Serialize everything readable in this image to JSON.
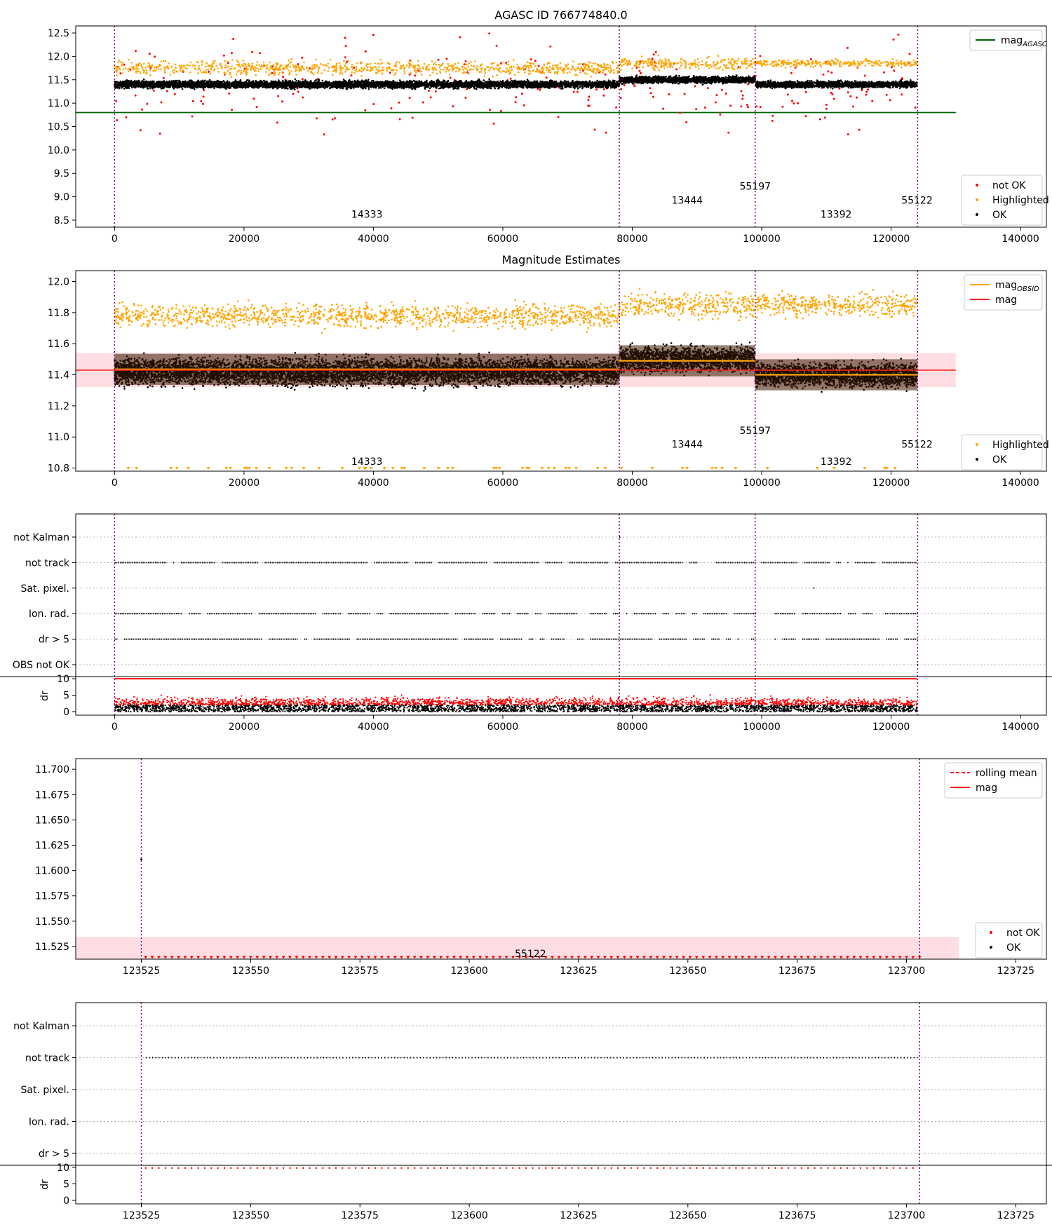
{
  "figure": {
    "titles": [
      "AGASC ID 766774840.0",
      "Magnitude Estimates"
    ],
    "colors": {
      "ok": "#000000",
      "not_ok": "#ff0000",
      "highlighted": "#ffa500",
      "agasc": "#006400",
      "mag_line": "#ff2020",
      "obsid_line": "#ffa500",
      "band": "#ffb6c1",
      "obs_divider": "#800080",
      "grid": "#b0b0b0"
    }
  },
  "chart_data": [
    {
      "type": "scatter",
      "title": "AGASC ID 766774840.0",
      "xlabel": "",
      "ylabel": "",
      "xlim": [
        -6000,
        144000
      ],
      "ylim": [
        8.35,
        12.65
      ],
      "xticks": [
        0,
        20000,
        40000,
        60000,
        80000,
        100000,
        120000,
        140000
      ],
      "yticks": [
        8.5,
        9.0,
        9.5,
        10.0,
        10.5,
        11.0,
        11.5,
        12.0,
        12.5
      ],
      "ytick_labels": [
        "8.5",
        "9.0",
        "9.5",
        "10.0",
        "10.5",
        "11.0",
        "11.5",
        "12.0",
        "12.5"
      ],
      "obs_boundaries": [
        0,
        78000,
        99000,
        124100
      ],
      "obs_labels": [
        {
          "text": "14333",
          "x": 39000,
          "y": 8.55
        },
        {
          "text": "13444",
          "x": 88500,
          "y": 8.85
        },
        {
          "text": "55197",
          "x": 99000,
          "y": 9.15
        },
        {
          "text": "13392",
          "x": 111500,
          "y": 8.55
        },
        {
          "text": "55122",
          "x": 124000,
          "y": 8.85
        }
      ],
      "lines": [
        {
          "name": "mag_AGASC",
          "y": 10.8,
          "x_range": [
            -6000,
            130000
          ]
        }
      ],
      "series": [
        {
          "name": "not OK",
          "segments": [
            {
              "x0": 0,
              "x1": 124000,
              "mean": 11.4,
              "spread": 1.4
            }
          ]
        },
        {
          "name": "Highlighted",
          "segments": [
            {
              "x0": 0,
              "x1": 78000,
              "mean": 11.75,
              "spread": 0.25
            },
            {
              "x0": 78000,
              "x1": 99000,
              "mean": 11.85,
              "spread": 0.2
            },
            {
              "x0": 99000,
              "x1": 124000,
              "mean": 11.85,
              "spread": 0.12
            }
          ]
        },
        {
          "name": "OK",
          "segments": [
            {
              "x0": 0,
              "x1": 78000,
              "mean": 11.4,
              "spread": 0.13
            },
            {
              "x0": 78000,
              "x1": 99000,
              "mean": 11.5,
              "spread": 0.12
            },
            {
              "x0": 99000,
              "x1": 124000,
              "mean": 11.4,
              "spread": 0.11
            }
          ]
        }
      ],
      "legend_upper": {
        "position": "top-right",
        "entries": [
          {
            "label": "mag",
            "sub": "AGASC",
            "kind": "line",
            "color": "#006400"
          }
        ]
      },
      "legend_lower": {
        "position": "bottom-right",
        "entries": [
          {
            "label": "not OK",
            "kind": "dot",
            "color": "#ff0000"
          },
          {
            "label": "Highlighted",
            "kind": "dot",
            "color": "#ffa500"
          },
          {
            "label": "OK",
            "kind": "dot",
            "color": "#000000"
          }
        ]
      }
    },
    {
      "type": "scatter",
      "title": "Magnitude Estimates",
      "xlabel": "",
      "ylabel": "",
      "xlim": [
        -6000,
        144000
      ],
      "ylim": [
        10.78,
        12.07
      ],
      "xticks": [
        0,
        20000,
        40000,
        60000,
        80000,
        100000,
        120000,
        140000
      ],
      "yticks": [
        10.8,
        11.0,
        11.2,
        11.4,
        11.6,
        11.8,
        12.0
      ],
      "ytick_labels": [
        "10.8",
        "11.0",
        "11.2",
        "11.4",
        "11.6",
        "11.8",
        "12.0"
      ],
      "obs_boundaries": [
        0,
        78000,
        99000,
        124100
      ],
      "obs_labels": [
        {
          "text": "14333",
          "x": 39000,
          "y": 10.82
        },
        {
          "text": "13444",
          "x": 88500,
          "y": 10.93
        },
        {
          "text": "55197",
          "x": 99000,
          "y": 11.02
        },
        {
          "text": "13392",
          "x": 111500,
          "y": 10.82
        },
        {
          "text": "55122",
          "x": 124000,
          "y": 10.93
        }
      ],
      "mag": 11.43,
      "mag_band": [
        11.32,
        11.54
      ],
      "mag_line_x_range": [
        -6000,
        130000
      ],
      "mag_obsid": [
        {
          "x0": 0,
          "x1": 78000,
          "y": 11.435
        },
        {
          "x0": 78000,
          "x1": 99000,
          "y": 11.49
        },
        {
          "x0": 99000,
          "x1": 124100,
          "y": 11.4
        }
      ],
      "series": [
        {
          "name": "Highlighted",
          "segments": [
            {
              "x0": 0,
              "x1": 78000,
              "mean": 11.78,
              "spread": 0.12
            },
            {
              "x0": 78000,
              "x1": 99000,
              "mean": 11.85,
              "spread": 0.14
            },
            {
              "x0": 99000,
              "x1": 124000,
              "mean": 11.85,
              "spread": 0.12
            }
          ]
        },
        {
          "name": "OK",
          "segments": [
            {
              "x0": 0,
              "x1": 78000,
              "mean": 11.42,
              "spread": 0.14
            },
            {
              "x0": 78000,
              "x1": 99000,
              "mean": 11.5,
              "spread": 0.13
            },
            {
              "x0": 99000,
              "x1": 124000,
              "mean": 11.4,
              "spread": 0.12
            }
          ]
        }
      ],
      "legend_upper": {
        "position": "top-right",
        "entries": [
          {
            "label": "mag",
            "sub": "OBSID",
            "kind": "line",
            "color": "#ffa500"
          },
          {
            "label": "mag",
            "kind": "line",
            "color": "#ff2020"
          }
        ]
      },
      "legend_lower": {
        "position": "bottom-right",
        "entries": [
          {
            "label": "Highlighted",
            "kind": "dot",
            "color": "#ffa500"
          },
          {
            "label": "OK",
            "kind": "dot",
            "color": "#000000"
          }
        ]
      }
    },
    {
      "type": "scatter",
      "title": "",
      "xlim": [
        -6000,
        144000
      ],
      "xticks": [
        0,
        20000,
        40000,
        60000,
        80000,
        100000,
        120000,
        140000
      ],
      "flag_labels": [
        "not Kalman",
        "not track",
        "Sat. pixel.",
        "Ion. rad.",
        "dr > 5",
        "OBS not OK"
      ],
      "obs_boundaries": [
        0,
        78000,
        99000,
        124100
      ],
      "flags": [
        {
          "name": "not Kalman",
          "ranges": [
            [
              78000,
              78200
            ]
          ]
        },
        {
          "name": "not track",
          "ranges": [
            [
              0,
              99000
            ],
            [
              99000,
              124000
            ]
          ]
        },
        {
          "name": "Sat. pixel.",
          "ranges": [
            [
              108000,
              108200
            ]
          ]
        },
        {
          "name": "Ion. rad.",
          "ranges": [
            [
              0,
              99000
            ],
            [
              102000,
              124000
            ]
          ]
        },
        {
          "name": "dr > 5",
          "ranges": [
            [
              0,
              99000
            ],
            [
              102000,
              124000
            ]
          ]
        },
        {
          "name": "OBS not OK",
          "ranges": [
            [
              124000,
              124100
            ]
          ]
        }
      ],
      "dr_panel": {
        "ylabel": "dr",
        "ylim": [
          0,
          10
        ],
        "yticks": [
          0,
          5,
          10
        ],
        "ok_max": 2.0,
        "notok_max": 10
      }
    },
    {
      "type": "scatter",
      "title": "",
      "xlim": [
        123510,
        123732
      ],
      "ylim": [
        11.5125,
        11.7105
      ],
      "xticks": [
        123525,
        123550,
        123575,
        123600,
        123625,
        123650,
        123675,
        123700,
        123725
      ],
      "yticks": [
        11.525,
        11.55,
        11.575,
        11.6,
        11.625,
        11.65,
        11.675,
        11.7
      ],
      "ytick_labels": [
        "11.525",
        "11.550",
        "11.575",
        "11.600",
        "11.625",
        "11.650",
        "11.675",
        "11.700"
      ],
      "obs_boundaries": [
        123525,
        123703
      ],
      "obs_labels": [
        {
          "text": "55122",
          "x": 123614,
          "y": 11.5145
        }
      ],
      "mag_band": [
        11.5125,
        11.5345
      ],
      "band_x_range": [
        123510,
        123712
      ],
      "point_ok": {
        "x": 123525,
        "y": 11.611
      },
      "bottom_markers": {
        "x0": 123526,
        "x1": 123703,
        "step": 1.5,
        "y": 11.5135
      },
      "legend_upper": {
        "position": "top-right",
        "entries": [
          {
            "label": "rolling mean",
            "kind": "dashed",
            "color": "#ff2020"
          },
          {
            "label": "mag",
            "kind": "line",
            "color": "#ff2020"
          }
        ]
      },
      "legend_lower": {
        "position": "bottom-right",
        "entries": [
          {
            "label": "not OK",
            "kind": "dot",
            "color": "#ff0000"
          },
          {
            "label": "OK",
            "kind": "dot",
            "color": "#000000"
          }
        ]
      }
    },
    {
      "type": "scatter",
      "title": "",
      "xlim": [
        123510,
        123732
      ],
      "xticks": [
        123525,
        123550,
        123575,
        123600,
        123625,
        123650,
        123675,
        123700,
        123725
      ],
      "flag_labels": [
        "not Kalman",
        "not track",
        "Sat. pixel.",
        "Ion. rad.",
        "dr > 5"
      ],
      "obs_boundaries": [
        123525,
        123703
      ],
      "flags": [
        {
          "name": "not track",
          "ranges": [
            [
              123526,
              123703
            ]
          ]
        }
      ],
      "dr_panel": {
        "ylabel": "dr",
        "ylim": [
          0,
          10
        ],
        "yticks": [
          0,
          5,
          10
        ],
        "dots_y": 9.8,
        "x0": 123526,
        "x1": 123703,
        "step": 1.5
      }
    }
  ]
}
